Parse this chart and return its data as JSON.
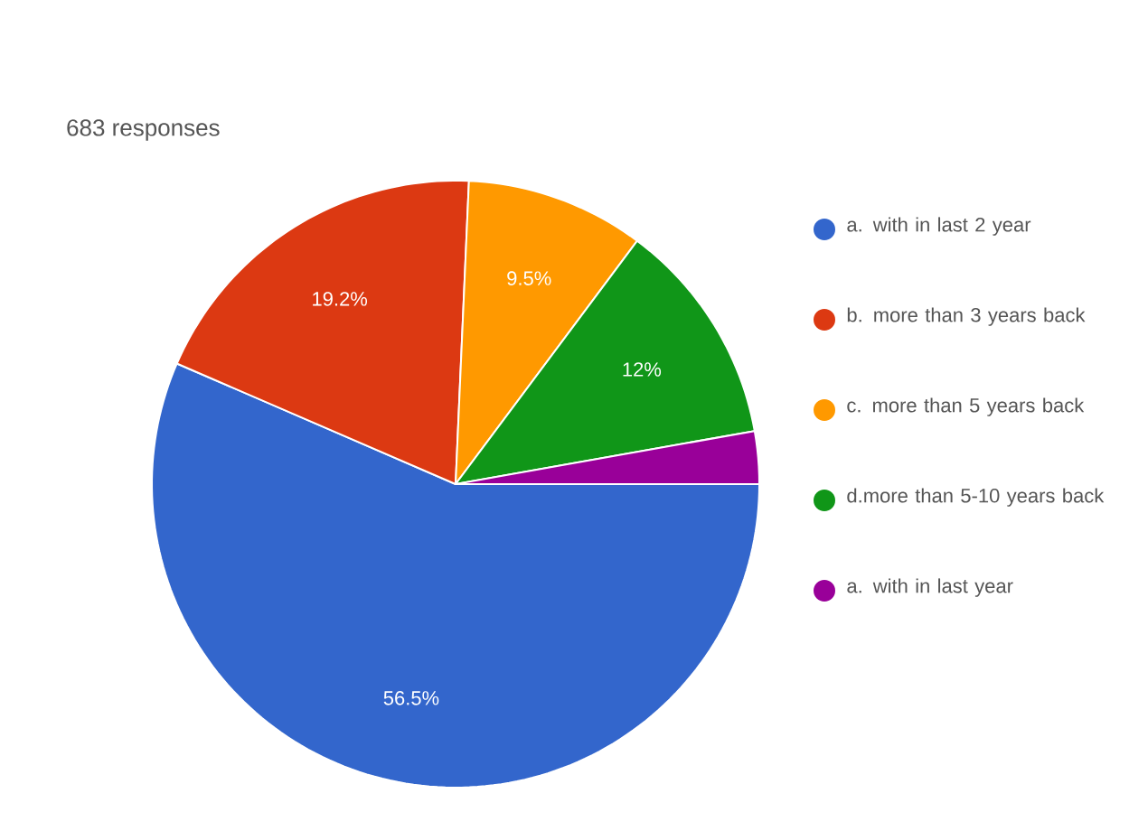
{
  "chart_data": {
    "type": "pie",
    "title": "683 responses",
    "categories": [
      "a. with in last 2 year",
      "b. more than 3 years back",
      "c. more than 5 years back",
      "d.more than 5-10 years back",
      "a. with in last year"
    ],
    "values": [
      56.5,
      19.2,
      9.5,
      12,
      2.8
    ],
    "colors": [
      "#3366cc",
      "#dc3912",
      "#ff9900",
      "#109618",
      "#990099"
    ],
    "value_labels": [
      "56.5%",
      "19.2%",
      "9.5%",
      "12%",
      null
    ],
    "legend": "right"
  }
}
